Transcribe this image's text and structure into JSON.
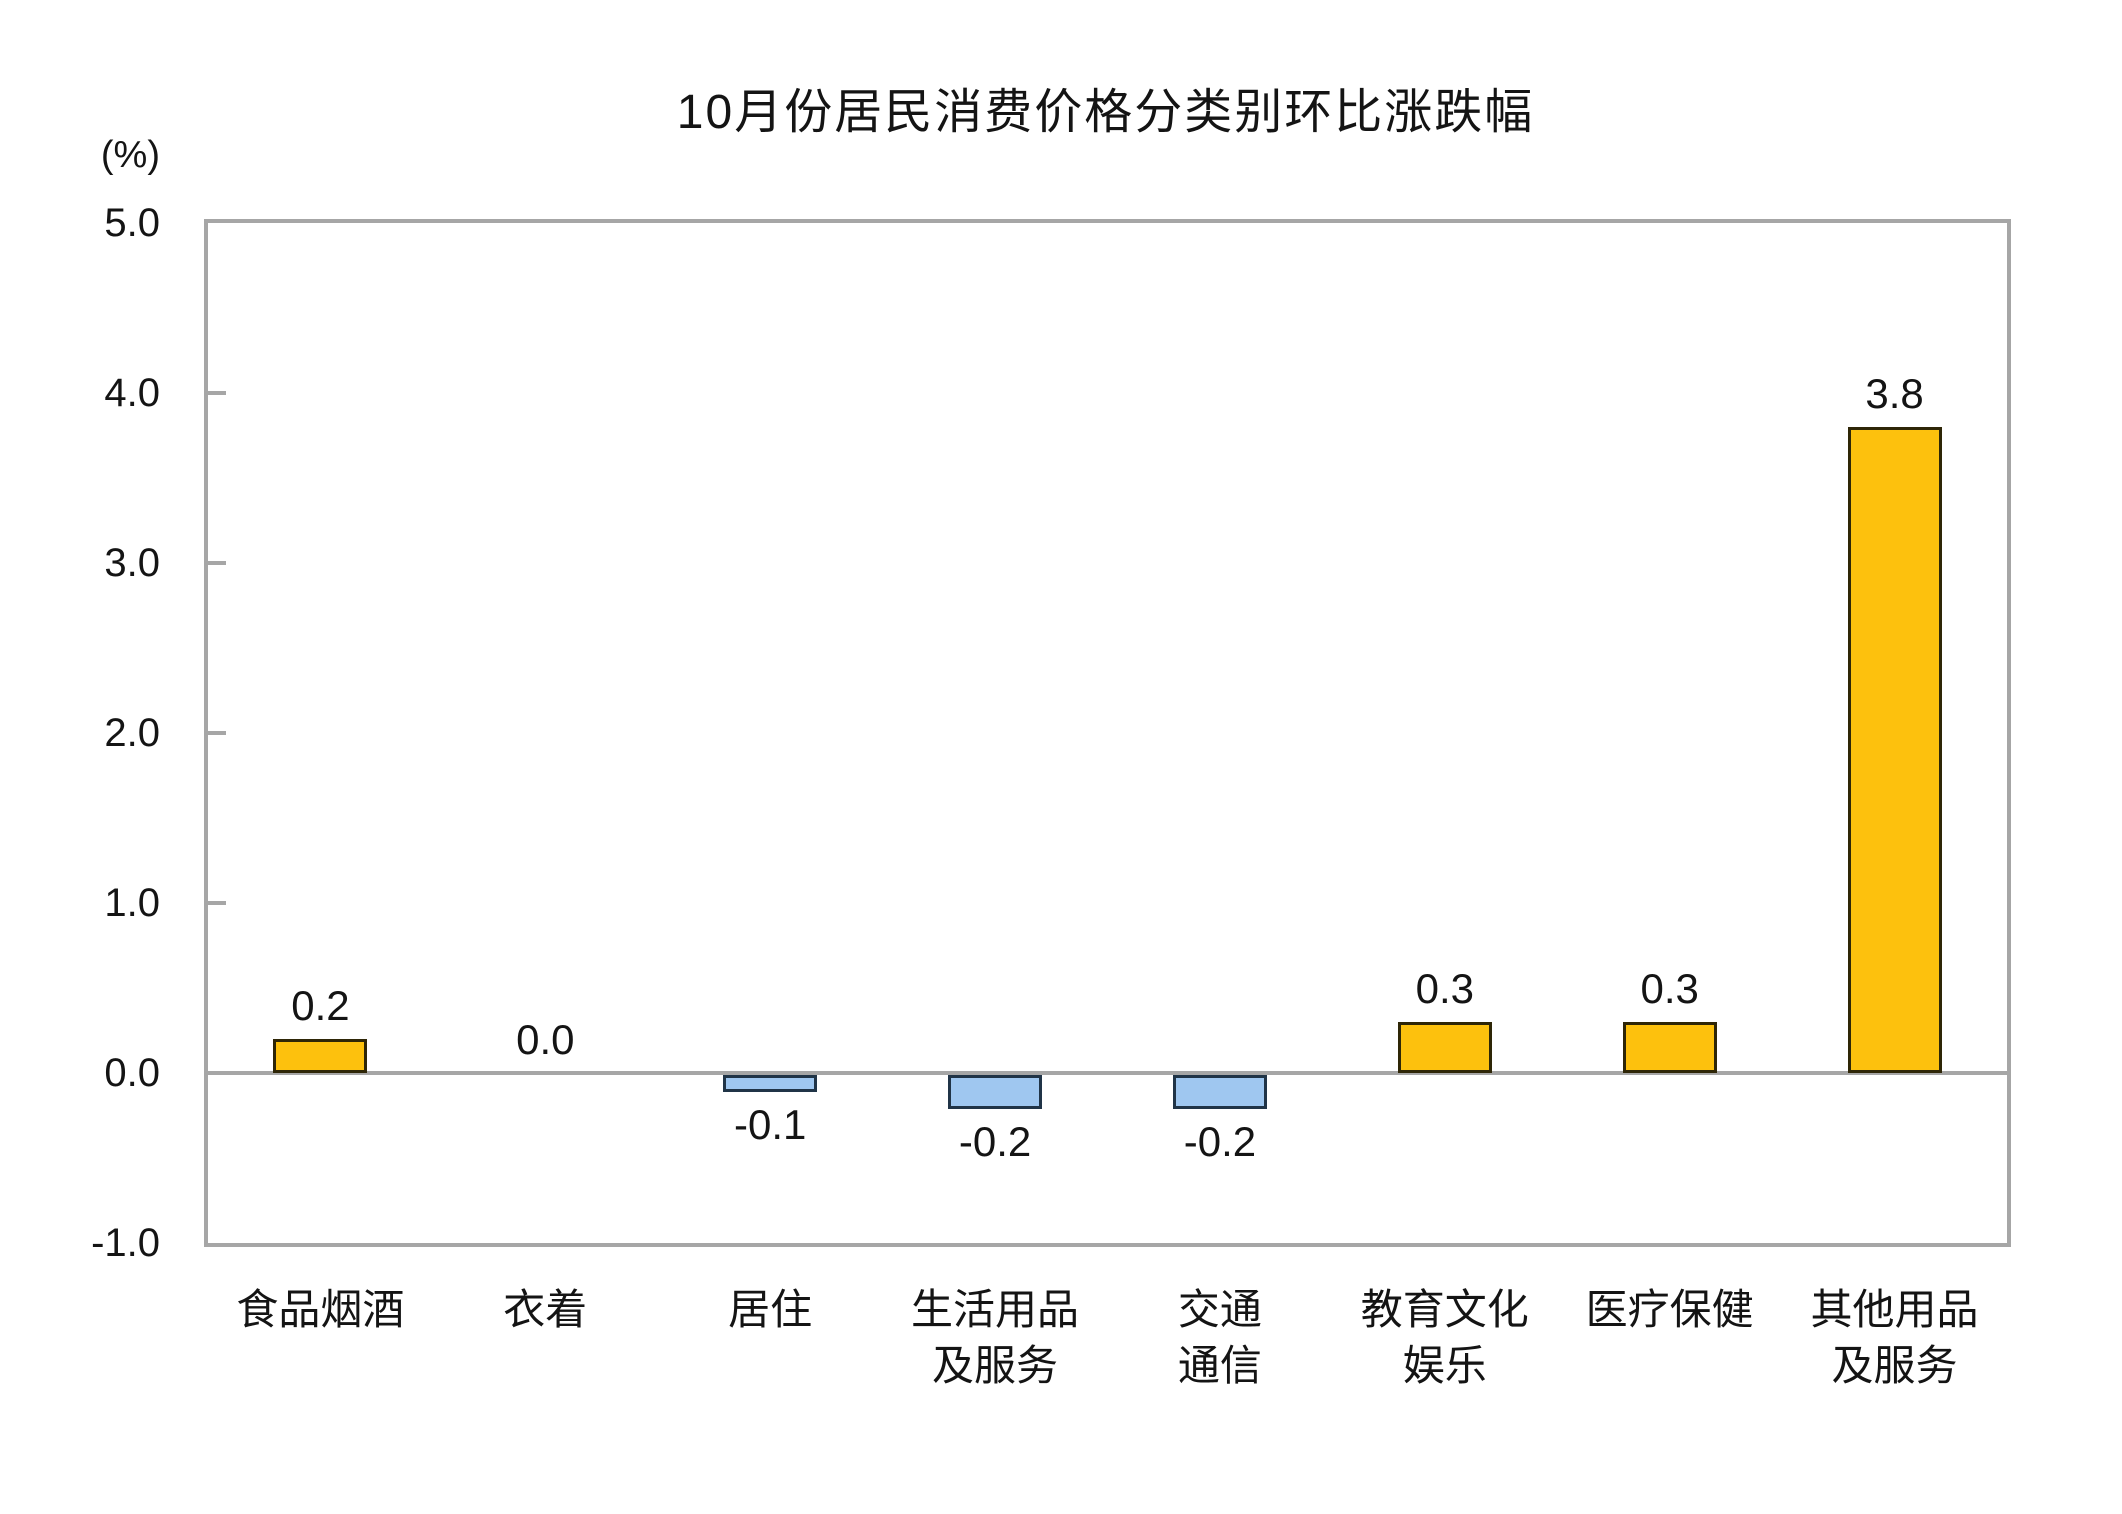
{
  "title": "10月份居民消费价格分类别环比涨跌幅",
  "axis": {
    "unit_label": "(%)",
    "ytick_labels": [
      "5.0",
      "4.0",
      "3.0",
      "2.0",
      "1.0",
      "0.0",
      "-1.0"
    ],
    "ytick_values": [
      5.0,
      4.0,
      3.0,
      2.0,
      1.0,
      0.0,
      -1.0
    ]
  },
  "chart_data": {
    "type": "bar",
    "title": "10月份居民消费价格分类别环比涨跌幅",
    "ylabel": "(%)",
    "ylim": [
      -1.0,
      5.0
    ],
    "grid": false,
    "legend": "none",
    "categories": [
      "食品烟酒",
      "衣着",
      "居住",
      "生活用品及服务",
      "交通通信",
      "教育文化娱乐",
      "医疗保健",
      "其他用品及服务"
    ],
    "category_display_lines": [
      "食品烟酒",
      "衣着",
      "居住",
      "生活用品\n及服务",
      "交通\n通信",
      "教育文化\n娱乐",
      "医疗保健",
      "其他用品\n及服务"
    ],
    "values": [
      0.2,
      0.0,
      -0.1,
      -0.2,
      -0.2,
      0.3,
      0.3,
      3.8
    ],
    "value_labels": [
      "0.2",
      "0.0",
      "-0.1",
      "-0.2",
      "-0.2",
      "0.3",
      "0.3",
      "3.8"
    ],
    "colors": {
      "positive_fill": "#FDC10D",
      "positive_border": "#2E2607",
      "negative_fill": "#9FC7F0",
      "negative_border": "#203447",
      "axis_gray": "#A6A6A6",
      "text": "#141414"
    }
  }
}
